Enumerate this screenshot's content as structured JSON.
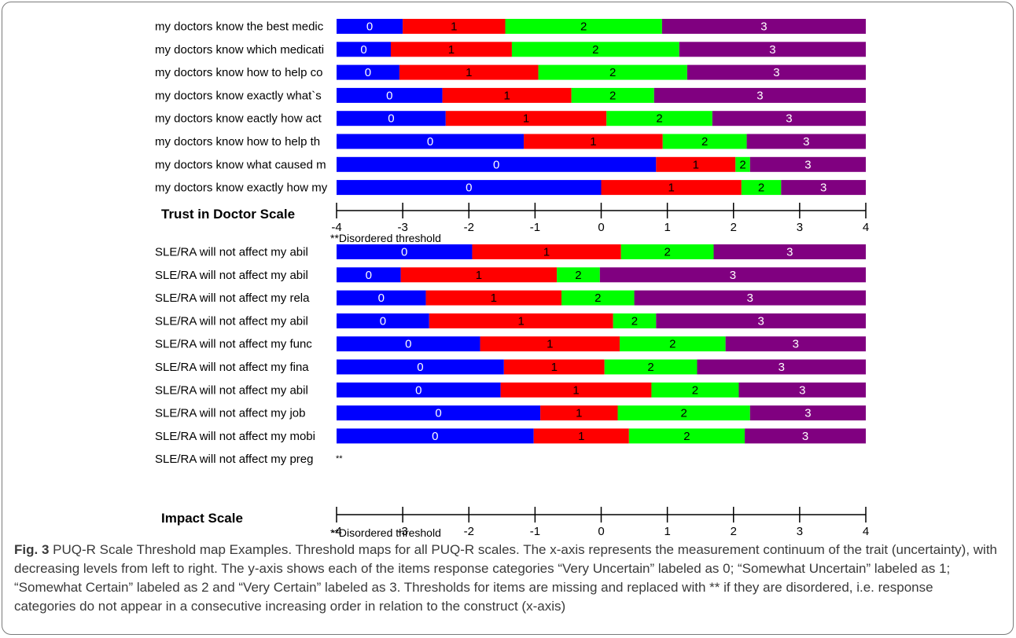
{
  "caption": {
    "label": "Fig. 3",
    "text": " PUQ-R Scale Threshold map Examples. Threshold maps for all PUQ-R scales. The x-axis represents the measurement continuum of the trait (uncertainty), with decreasing levels from left to right. The y-axis shows each of the items response categories “Very Uncertain” labeled as 0; “Somewhat Uncertain” labeled as 1; “Somewhat Certain” labeled as 2 and “Very Certain” labeled as 3. Thresholds for items are missing and replaced with ** if they are disordered, i.e. response categories do not appear in a consecutive increasing order in relation to the construct (x-axis)"
  },
  "colors": {
    "category_0": "#0000ff",
    "category_1": "#ff0000",
    "category_2": "#00ff00",
    "category_3": "#800080"
  },
  "chart_data": [
    {
      "type": "bar",
      "orientation": "horizontal-stacked",
      "title": "Trust in Doctor Scale",
      "xlim": [
        -4,
        4
      ],
      "xticks": [
        "-4",
        "-3",
        "-2",
        "-1",
        "0",
        "1",
        "2",
        "3",
        "4"
      ],
      "note": "**Disordered threshold",
      "category_labels": [
        "0",
        "1",
        "2",
        "3"
      ],
      "items": [
        {
          "label": "my doctors know the best medic",
          "thresholds": [
            -3.0,
            -1.45,
            0.92
          ]
        },
        {
          "label": "my doctors know which medicati",
          "thresholds": [
            -3.18,
            -1.35,
            1.18
          ]
        },
        {
          "label": "my doctors know how to help co",
          "thresholds": [
            -3.05,
            -0.95,
            1.3
          ]
        },
        {
          "label": "my doctors know exactly what`s",
          "thresholds": [
            -2.4,
            -0.45,
            0.8
          ]
        },
        {
          "label": "my doctors know eactly how act",
          "thresholds": [
            -2.35,
            0.08,
            1.68
          ]
        },
        {
          "label": "my doctors know how to help th",
          "thresholds": [
            -1.17,
            0.93,
            2.2
          ]
        },
        {
          "label": "my doctors know what caused m",
          "thresholds": [
            0.83,
            2.03,
            2.25
          ]
        },
        {
          "label": "my doctors know exactly how my",
          "thresholds": [
            0.0,
            2.12,
            2.72
          ]
        }
      ]
    },
    {
      "type": "bar",
      "orientation": "horizontal-stacked",
      "title": "Impact Scale",
      "xlim": [
        -4,
        4
      ],
      "xticks": [
        "-4",
        "-3",
        "-2",
        "-1",
        "0",
        "1",
        "2",
        "3",
        "4"
      ],
      "note": "**Disordered threshold",
      "category_labels": [
        "0",
        "1",
        "2",
        "3"
      ],
      "items": [
        {
          "label": "SLE/RA will not affect my abil",
          "thresholds": [
            -1.95,
            0.3,
            1.7
          ]
        },
        {
          "label": "SLE/RA will not affect my abil",
          "thresholds": [
            -3.03,
            -0.67,
            -0.02
          ]
        },
        {
          "label": "SLE/RA will not affect my rela",
          "thresholds": [
            -2.65,
            -0.6,
            0.5
          ]
        },
        {
          "label": "SLE/RA will not affect my abil",
          "thresholds": [
            -2.6,
            0.18,
            0.83
          ]
        },
        {
          "label": "SLE/RA will not affect my func",
          "thresholds": [
            -1.83,
            0.28,
            1.88
          ]
        },
        {
          "label": "SLE/RA will not affect my fina",
          "thresholds": [
            -1.47,
            0.05,
            1.45
          ]
        },
        {
          "label": "SLE/RA will not affect my abil",
          "thresholds": [
            -1.52,
            0.76,
            2.08
          ]
        },
        {
          "label": "SLE/RA will not affect my job",
          "thresholds": [
            -0.92,
            0.25,
            2.25
          ]
        },
        {
          "label": "SLE/RA will not affect my mobi",
          "thresholds": [
            -1.02,
            0.42,
            2.17
          ]
        },
        {
          "label": "SLE/RA will not affect my preg",
          "thresholds": null,
          "marker": "**"
        }
      ]
    }
  ]
}
